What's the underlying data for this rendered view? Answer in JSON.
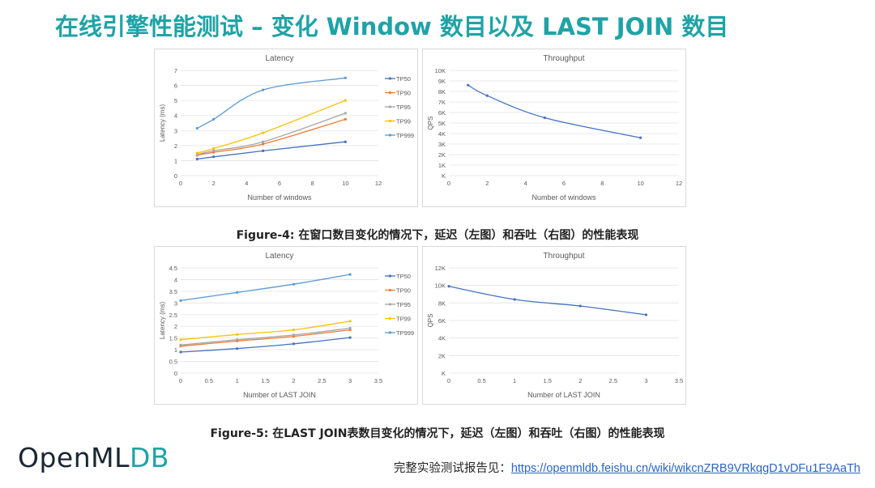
{
  "title": "在线引擎性能测试 – 变化 Window 数目以及 LAST JOIN 数目",
  "captions": {
    "fig4": "Figure-4: 在窗口数目变化的情况下，延迟（左图）和吞吐（右图）的性能表现",
    "fig5": "Figure-5: 在LAST JOIN表数目变化的情况下，延迟（左图）和吞吐（右图）的性能表现"
  },
  "logo": {
    "main": "OpenML",
    "accent": "DB"
  },
  "footer": {
    "prefix": "完整实验测试报告见：",
    "link": "https://openmldb.feishu.cn/wiki/wikcnZRB9VRkqgD1vDFu1F9AaTh"
  },
  "colors": {
    "title": "#1fa3a6",
    "TP50": "#4472c4",
    "TP90": "#ed7d31",
    "TP95": "#a5a5a5",
    "TP99": "#ffc000",
    "TP999": "#5b9bd5",
    "qps": "#4472c4"
  },
  "chart_data": [
    {
      "id": "latency-windows",
      "type": "line",
      "title": "Latency",
      "xlabel": "Number of windows",
      "ylabel": "Latency (ms)",
      "xlim": [
        0,
        12
      ],
      "ylim": [
        0,
        7
      ],
      "xticks": [
        0,
        2,
        4,
        6,
        8,
        10,
        12
      ],
      "yticks": [
        0,
        1,
        2,
        3,
        4,
        5,
        6,
        7
      ],
      "ytick_labels": [
        "0",
        "1",
        "2",
        "3",
        "4",
        "5",
        "6",
        "7"
      ],
      "legend": "right",
      "x": [
        1,
        2,
        5,
        10
      ],
      "series": [
        {
          "name": "TP50",
          "color": "#4472c4",
          "values": [
            1.1,
            1.25,
            1.65,
            2.25
          ]
        },
        {
          "name": "TP90",
          "color": "#ed7d31",
          "values": [
            1.35,
            1.55,
            2.1,
            3.75
          ]
        },
        {
          "name": "TP95",
          "color": "#a5a5a5",
          "values": [
            1.4,
            1.65,
            2.25,
            4.15
          ]
        },
        {
          "name": "TP99",
          "color": "#ffc000",
          "values": [
            1.5,
            1.8,
            2.85,
            5.0
          ]
        },
        {
          "name": "TP999",
          "color": "#5b9bd5",
          "values": [
            3.15,
            3.75,
            5.7,
            6.5
          ]
        }
      ]
    },
    {
      "id": "throughput-windows",
      "type": "line",
      "title": "Throughput",
      "xlabel": "Number of windows",
      "ylabel": "QPS",
      "xlim": [
        0,
        12
      ],
      "ylim": [
        0,
        10000
      ],
      "xticks": [
        0,
        2,
        4,
        6,
        8,
        10,
        12
      ],
      "yticks": [
        0,
        1000,
        2000,
        3000,
        4000,
        5000,
        6000,
        7000,
        8000,
        9000,
        10000
      ],
      "ytick_labels": [
        "K",
        "1K",
        "2K",
        "3K",
        "4K",
        "5K",
        "6K",
        "7K",
        "8K",
        "9K",
        "10K"
      ],
      "legend": "none",
      "x": [
        1,
        2,
        5,
        10
      ],
      "series": [
        {
          "name": "",
          "color": "#4472c4",
          "values": [
            8600,
            7600,
            5500,
            3600
          ]
        }
      ]
    },
    {
      "id": "latency-lastjoin",
      "type": "line",
      "title": "Latency",
      "xlabel": "Number of LAST JOIN",
      "ylabel": "Latency (ms)",
      "xlim": [
        0,
        3.5
      ],
      "ylim": [
        0,
        4.5
      ],
      "xticks": [
        0,
        0.5,
        1,
        1.5,
        2,
        2.5,
        3,
        3.5
      ],
      "yticks": [
        0,
        0.5,
        1,
        1.5,
        2,
        2.5,
        3,
        3.5,
        4,
        4.5
      ],
      "ytick_labels": [
        "0",
        "0.5",
        "1",
        "1.5",
        "2",
        "2.5",
        "3",
        "3.5",
        "4",
        "4.5"
      ],
      "legend": "right",
      "x": [
        0,
        1,
        2,
        3
      ],
      "series": [
        {
          "name": "TP50",
          "color": "#4472c4",
          "values": [
            0.9,
            1.05,
            1.25,
            1.52
          ]
        },
        {
          "name": "TP90",
          "color": "#ed7d31",
          "values": [
            1.15,
            1.37,
            1.57,
            1.85
          ]
        },
        {
          "name": "TP95",
          "color": "#a5a5a5",
          "values": [
            1.2,
            1.43,
            1.63,
            1.92
          ]
        },
        {
          "name": "TP99",
          "color": "#ffc000",
          "values": [
            1.43,
            1.65,
            1.85,
            2.22
          ]
        },
        {
          "name": "TP999",
          "color": "#5b9bd5",
          "values": [
            3.1,
            3.45,
            3.8,
            4.22
          ]
        }
      ]
    },
    {
      "id": "throughput-lastjoin",
      "type": "line",
      "title": "Throughput",
      "xlabel": "Number of LAST JOIN",
      "ylabel": "QPS",
      "xlim": [
        0,
        3.5
      ],
      "ylim": [
        0,
        12000
      ],
      "xticks": [
        0,
        0.5,
        1,
        1.5,
        2,
        2.5,
        3,
        3.5
      ],
      "yticks": [
        0,
        2000,
        4000,
        6000,
        8000,
        10000,
        12000
      ],
      "ytick_labels": [
        "K",
        "2K",
        "4K",
        "6K",
        "8K",
        "10K",
        "12K"
      ],
      "legend": "none",
      "x": [
        0,
        1,
        2,
        3
      ],
      "series": [
        {
          "name": "",
          "color": "#4472c4",
          "values": [
            9900,
            8400,
            7650,
            6650
          ]
        }
      ]
    }
  ]
}
